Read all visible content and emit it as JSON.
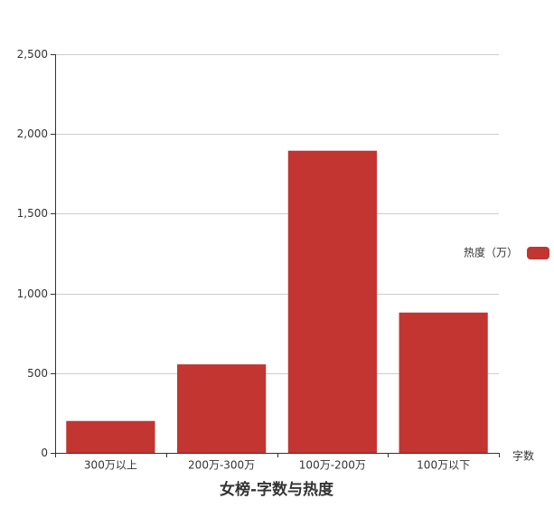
{
  "chart_data": {
    "type": "bar",
    "title": "女榜-字数与热度",
    "xlabel": "字数",
    "ylabel": "",
    "categories": [
      "300万以上",
      "200万-300万",
      "100万-200万",
      "100万以下"
    ],
    "series": [
      {
        "name": "热度（万）",
        "values": [
          200,
          555,
          1895,
          880
        ],
        "color": "#c23531"
      }
    ],
    "ylim": [
      0,
      2500
    ],
    "yticks": [
      "0",
      "500",
      "1,000",
      "1,500",
      "2,000",
      "2,500"
    ],
    "grid": true,
    "legend_position": "right"
  }
}
